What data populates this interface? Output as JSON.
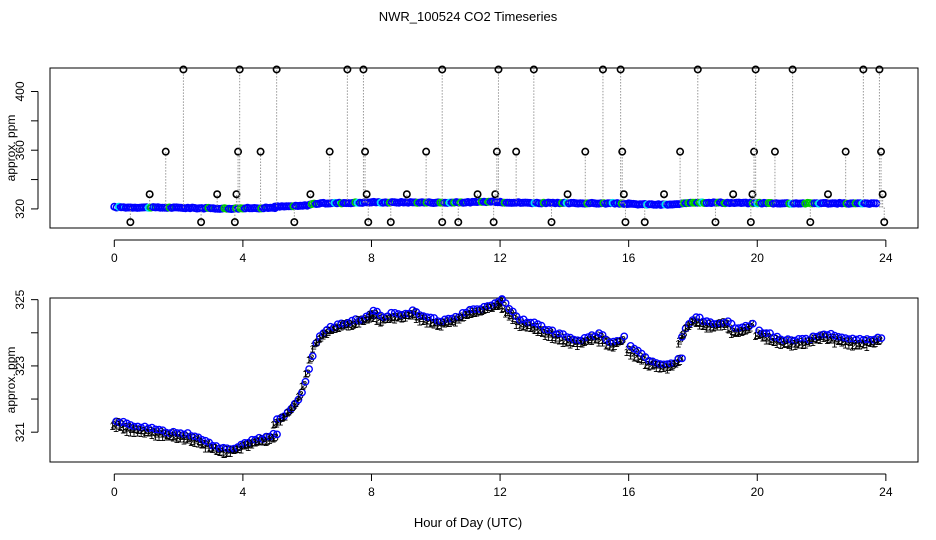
{
  "title": "NWR_100524  CO2 Timeseries",
  "xlabel": "Hour of Day (UTC)",
  "chart_data": [
    {
      "type": "scatter",
      "panel": "top",
      "ylabel": "approx. ppm",
      "xlim": [
        -2,
        25
      ],
      "ylim": [
        307,
        416
      ],
      "xticks": [
        0,
        4,
        8,
        12,
        16,
        20,
        24
      ],
      "yticks": [
        320,
        360,
        400
      ],
      "ytick_labels": [
        "320",
        "360",
        "400"
      ],
      "baseline_segments": [
        {
          "x": [
            0.0,
            0.5,
            1.0,
            1.5,
            2.0,
            2.5,
            3.0,
            3.5,
            4.0,
            4.5,
            5.0
          ],
          "y": [
            321.3,
            321.0,
            321.0,
            320.9,
            320.8,
            320.6,
            320.4,
            320.2,
            320.4,
            320.6,
            320.8
          ]
        },
        {
          "x": [
            5.0,
            5.5,
            5.8,
            6.0,
            6.2,
            6.5,
            7.0,
            7.5,
            8.0
          ],
          "y": [
            321.5,
            321.8,
            322.0,
            322.5,
            323.5,
            323.8,
            324.0,
            324.2,
            324.5
          ]
        },
        {
          "x": [
            8.0,
            8.5,
            9.0,
            9.5,
            10.0,
            10.5,
            11.0,
            11.5,
            12.0
          ],
          "y": [
            324.6,
            324.4,
            324.5,
            324.4,
            324.3,
            324.3,
            324.5,
            324.8,
            324.9
          ]
        },
        {
          "x": [
            12.0,
            12.5,
            13.0,
            13.5,
            14.0,
            14.5,
            15.0,
            15.5,
            16.0
          ],
          "y": [
            324.6,
            324.3,
            324.1,
            324.0,
            323.9,
            323.9,
            323.8,
            323.8,
            323.5
          ]
        },
        {
          "x": [
            16.0,
            16.5,
            17.0,
            17.4,
            17.6,
            17.8,
            18.0,
            18.5,
            19.0,
            19.5,
            20.0
          ],
          "y": [
            323.3,
            323.1,
            322.9,
            323.0,
            323.2,
            324.0,
            324.4,
            324.3,
            324.2,
            324.1,
            324.0
          ]
        },
        {
          "x": [
            20.0,
            20.5,
            21.0,
            21.5,
            22.0,
            22.5,
            23.0,
            23.5,
            23.7
          ],
          "y": [
            324.0,
            323.9,
            323.8,
            323.8,
            323.9,
            323.8,
            323.7,
            323.7,
            323.7
          ]
        }
      ],
      "spikes": [
        {
          "x": 0.5,
          "y": 311
        },
        {
          "x": 1.1,
          "y": 330
        },
        {
          "x": 1.6,
          "y": 359
        },
        {
          "x": 2.15,
          "y": 415
        },
        {
          "x": 2.7,
          "y": 311
        },
        {
          "x": 3.2,
          "y": 330
        },
        {
          "x": 3.75,
          "y": 311
        },
        {
          "x": 3.8,
          "y": 330
        },
        {
          "x": 3.85,
          "y": 359
        },
        {
          "x": 3.9,
          "y": 415
        },
        {
          "x": 4.55,
          "y": 359
        },
        {
          "x": 5.05,
          "y": 415
        },
        {
          "x": 5.6,
          "y": 311
        },
        {
          "x": 6.1,
          "y": 330
        },
        {
          "x": 6.7,
          "y": 359
        },
        {
          "x": 7.25,
          "y": 415
        },
        {
          "x": 7.75,
          "y": 415
        },
        {
          "x": 7.8,
          "y": 359
        },
        {
          "x": 7.85,
          "y": 330
        },
        {
          "x": 7.9,
          "y": 311
        },
        {
          "x": 8.6,
          "y": 311
        },
        {
          "x": 9.1,
          "y": 330
        },
        {
          "x": 9.7,
          "y": 359
        },
        {
          "x": 10.2,
          "y": 311
        },
        {
          "x": 10.2,
          "y": 415
        },
        {
          "x": 10.7,
          "y": 311
        },
        {
          "x": 11.3,
          "y": 330
        },
        {
          "x": 11.8,
          "y": 311
        },
        {
          "x": 11.85,
          "y": 330
        },
        {
          "x": 11.9,
          "y": 359
        },
        {
          "x": 11.95,
          "y": 415
        },
        {
          "x": 12.5,
          "y": 359
        },
        {
          "x": 13.05,
          "y": 415
        },
        {
          "x": 13.6,
          "y": 311
        },
        {
          "x": 14.1,
          "y": 330
        },
        {
          "x": 14.65,
          "y": 359
        },
        {
          "x": 15.2,
          "y": 415
        },
        {
          "x": 15.75,
          "y": 415
        },
        {
          "x": 15.8,
          "y": 359
        },
        {
          "x": 15.85,
          "y": 330
        },
        {
          "x": 15.9,
          "y": 311
        },
        {
          "x": 16.5,
          "y": 311
        },
        {
          "x": 17.1,
          "y": 330
        },
        {
          "x": 17.6,
          "y": 359
        },
        {
          "x": 18.15,
          "y": 415
        },
        {
          "x": 18.7,
          "y": 311
        },
        {
          "x": 19.25,
          "y": 330
        },
        {
          "x": 19.8,
          "y": 311
        },
        {
          "x": 19.85,
          "y": 330
        },
        {
          "x": 19.9,
          "y": 359
        },
        {
          "x": 19.95,
          "y": 415
        },
        {
          "x": 20.55,
          "y": 359
        },
        {
          "x": 21.1,
          "y": 415
        },
        {
          "x": 21.65,
          "y": 311
        },
        {
          "x": 22.2,
          "y": 330
        },
        {
          "x": 22.75,
          "y": 359
        },
        {
          "x": 23.3,
          "y": 415
        },
        {
          "x": 23.8,
          "y": 415
        },
        {
          "x": 23.85,
          "y": 359
        },
        {
          "x": 23.9,
          "y": 330
        },
        {
          "x": 23.95,
          "y": 311
        }
      ],
      "colors": {
        "baseline": "#0000ff",
        "baseline_alt": "#00cc00",
        "baseline_alt2": "#00e5ee",
        "spike": "#000000",
        "spike_line": "#999999"
      }
    },
    {
      "type": "scatter",
      "panel": "bottom",
      "ylabel": "approx. ppm",
      "xlim": [
        -2,
        25
      ],
      "ylim": [
        320.1,
        325.05
      ],
      "xticks": [
        0,
        4,
        8,
        12,
        16,
        20,
        24
      ],
      "yticks": [
        321,
        323,
        325
      ],
      "ytick_labels": [
        "321",
        "323",
        "325"
      ],
      "series_markers": [
        {
          "name": "1",
          "color": "#cc0000"
        },
        {
          "name": "2",
          "color": "#00aa00"
        },
        {
          "name": "3",
          "color": "#0000ff"
        },
        {
          "name": "o",
          "color": "#0000ff"
        }
      ],
      "segments": [
        {
          "x": [
            0.0,
            0.5,
            1.0,
            1.5,
            2.0,
            2.5,
            3.0,
            3.5,
            4.0,
            4.5,
            5.0
          ],
          "y": [
            321.3,
            321.1,
            321.05,
            320.95,
            320.9,
            320.8,
            320.55,
            320.4,
            320.6,
            320.75,
            320.85
          ]
        },
        {
          "x": [
            5.0,
            5.3,
            5.6,
            5.8,
            6.0,
            6.2,
            6.4,
            6.7,
            7.0,
            7.5,
            8.0
          ],
          "y": [
            321.3,
            321.5,
            321.8,
            322.2,
            322.8,
            323.6,
            323.9,
            324.1,
            324.2,
            324.3,
            324.5
          ]
        },
        {
          "x": [
            8.0,
            8.3,
            8.6,
            9.0,
            9.3,
            9.6,
            10.0,
            10.3,
            10.6,
            11.0,
            11.5,
            12.0
          ],
          "y": [
            324.6,
            324.4,
            324.5,
            324.5,
            324.6,
            324.4,
            324.3,
            324.3,
            324.4,
            324.6,
            324.7,
            324.9
          ]
        },
        {
          "x": [
            12.0,
            12.3,
            12.6,
            13.0,
            13.5,
            14.0,
            14.5,
            15.0,
            15.5,
            15.8
          ],
          "y": [
            324.9,
            324.6,
            324.3,
            324.2,
            324.0,
            323.8,
            323.7,
            323.9,
            323.6,
            323.8
          ]
        },
        {
          "x": [
            16.0,
            16.3,
            16.6,
            17.0,
            17.3,
            17.6
          ],
          "y": [
            323.5,
            323.3,
            323.1,
            323.0,
            323.0,
            323.2
          ]
        },
        {
          "x": [
            17.6,
            17.8,
            18.0,
            18.3,
            18.6,
            19.0,
            19.3,
            19.6,
            19.8
          ],
          "y": [
            323.8,
            324.2,
            324.4,
            324.3,
            324.2,
            324.3,
            324.0,
            324.1,
            324.2
          ]
        },
        {
          "x": [
            20.0,
            20.5,
            21.0,
            21.5,
            22.0,
            22.5,
            23.0,
            23.5,
            23.8
          ],
          "y": [
            324.0,
            323.8,
            323.7,
            323.7,
            323.9,
            323.8,
            323.7,
            323.7,
            323.8
          ]
        }
      ]
    }
  ]
}
